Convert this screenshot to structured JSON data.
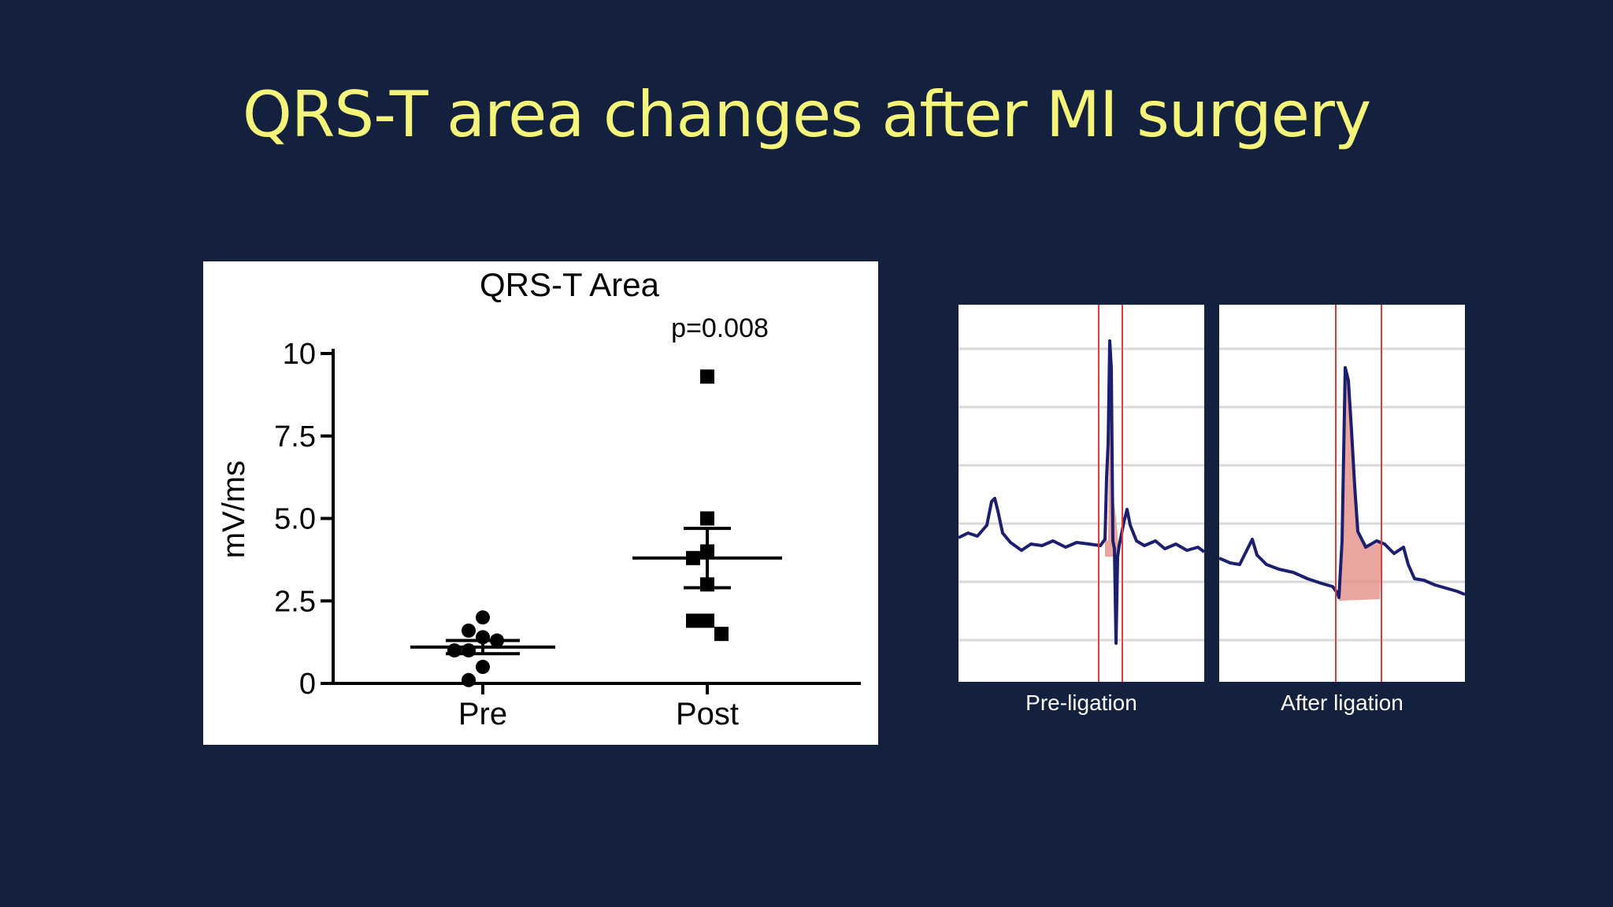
{
  "slide": {
    "title": "QRS-T area changes after MI surgery"
  },
  "chart_data": {
    "type": "scatter",
    "title": "QRS-T Area",
    "ylabel": "mV/ms",
    "xlabel": "",
    "ylim": [
      0,
      10
    ],
    "yticks": [
      "0",
      "2.5",
      "5.0",
      "7.5",
      "10"
    ],
    "ytick_values": [
      0,
      2.5,
      5.0,
      7.5,
      10
    ],
    "categories": [
      "Pre",
      "Post"
    ],
    "annotation": "p=0.008",
    "series": [
      {
        "category": "Pre",
        "marker": "circle",
        "values": [
          2.0,
          1.6,
          1.4,
          1.3,
          1.0,
          1.0,
          0.5,
          0.1
        ],
        "mean": 1.1,
        "sem_low": 0.9,
        "sem_high": 1.3
      },
      {
        "category": "Post",
        "marker": "square",
        "values": [
          9.3,
          5.0,
          4.0,
          3.8,
          3.0,
          1.9,
          1.9,
          1.5
        ],
        "mean": 3.8,
        "sem_low": 2.9,
        "sem_high": 4.7
      }
    ]
  },
  "ecg_panels": [
    {
      "caption": "Pre-ligation"
    },
    {
      "caption": "After ligation"
    }
  ],
  "colors": {
    "background": "#13213f",
    "title": "#f5f47a",
    "trace": "#1b1f6e",
    "marker_line": "#e23b3b",
    "shaded_area": "#e6958d"
  }
}
